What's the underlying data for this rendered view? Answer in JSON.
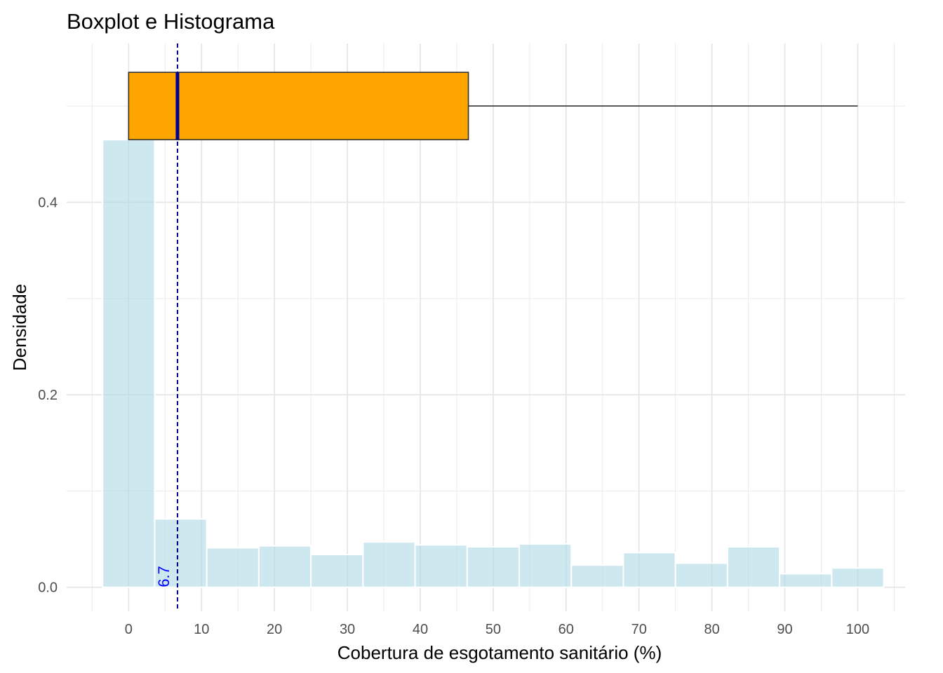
{
  "chart_data": {
    "type": "bar",
    "title": "Boxplot e Histograma",
    "xlabel": "Cobertura de esgotamento sanitário (%)",
    "ylabel": "Densidade",
    "xlim": [
      -8.5,
      106.5
    ],
    "ylim": [
      -0.025,
      0.565
    ],
    "x_ticks": [
      0,
      10,
      20,
      30,
      40,
      50,
      60,
      70,
      80,
      90,
      100
    ],
    "y_ticks": [
      0.0,
      0.2,
      0.4
    ],
    "y_tick_labels": [
      "0.0",
      "0.2",
      "0.4"
    ],
    "grid": true,
    "histogram": {
      "bin_width": 7.143,
      "bin_start": -3.571,
      "fill": "#add8e6",
      "opacity": 0.6,
      "outline": "#ffffff",
      "densities": [
        0.465,
        0.071,
        0.041,
        0.043,
        0.034,
        0.047,
        0.044,
        0.042,
        0.045,
        0.023,
        0.036,
        0.025,
        0.042,
        0.014,
        0.02
      ]
    },
    "boxplot": {
      "min": 0,
      "q1": 0,
      "median": 6.7,
      "q3": 46.6,
      "max": 100,
      "y_center": 0.5,
      "box_height": 0.07,
      "fill": "#ffa500",
      "outline": "#333333",
      "median_color": "#00008b"
    },
    "median_line": {
      "x": 6.7,
      "color": "#00008b",
      "style": "dashed",
      "label": "6.7",
      "label_color": "#0000ff"
    }
  }
}
